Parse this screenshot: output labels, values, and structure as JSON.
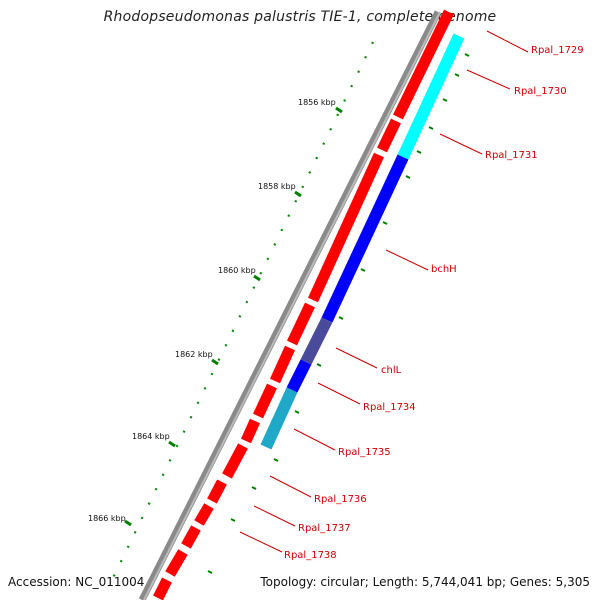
{
  "title": "Rhodopseudomonas palustris TIE-1, complete genome",
  "footer": {
    "accession": "Accession: NC_011004",
    "summary": "Topology: circular; Length: 5,744,041 bp; Genes: 5,305"
  },
  "scale": {
    "unit": "kbp",
    "ticks": [
      {
        "kbp": 1856,
        "label": "1856 kbp"
      },
      {
        "kbp": 1858,
        "label": "1858 kbp"
      },
      {
        "kbp": 1860,
        "label": "1860 kbp"
      },
      {
        "kbp": 1862,
        "label": "1862 kbp"
      },
      {
        "kbp": 1864,
        "label": "1864 kbp"
      },
      {
        "kbp": 1866,
        "label": "1866 kbp"
      }
    ]
  },
  "gene_labels": [
    {
      "name": "Rpal_1729"
    },
    {
      "name": "Rpal_1730"
    },
    {
      "name": "Rpal_1731"
    },
    {
      "name": "bchH"
    },
    {
      "name": "chlL"
    },
    {
      "name": "Rpal_1734"
    },
    {
      "name": "Rpal_1735"
    },
    {
      "name": "Rpal_1736"
    },
    {
      "name": "Rpal_1737"
    },
    {
      "name": "Rpal_1738"
    }
  ],
  "colors": {
    "backbone": "#808080",
    "forward_genes": "#ff0000",
    "feature_cyan": "#00ffff",
    "feature_blue": "#0000ff",
    "feature_slate": "#4a4a9a",
    "label_text": "#cc0000",
    "ticks": "#008000"
  }
}
